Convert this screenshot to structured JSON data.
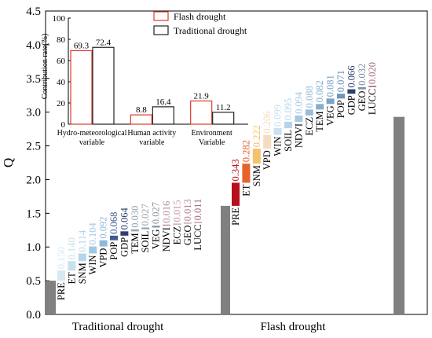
{
  "chart_data": [
    {
      "type": "waterfall",
      "ylabel": "Q",
      "ylim": [
        0,
        4.5
      ],
      "yticks": [
        "0.0",
        "0.5",
        "1.0",
        "1.5",
        "2.0",
        "2.5",
        "3.0",
        "3.5",
        "4.0",
        "4.5"
      ],
      "groups": [
        {
          "name": "Traditional drought",
          "total": 2.93,
          "base": 0.5,
          "factors": [
            {
              "label": "PRE",
              "value": 0.15,
              "text": "0.150",
              "color": "#d6e8f2"
            },
            {
              "label": "ET",
              "value": 0.14,
              "text": "0.140",
              "color": "#c9e0ee"
            },
            {
              "label": "SNM",
              "value": 0.114,
              "text": "0.114",
              "color": "#b7d5ea"
            },
            {
              "label": "WIN",
              "value": 0.104,
              "text": "0.104",
              "color": "#a3c7e3"
            },
            {
              "label": "VPD",
              "value": 0.092,
              "text": "0.092",
              "color": "#8fb8db"
            },
            {
              "label": "POP",
              "value": 0.068,
              "text": "0.068",
              "color": "#3e5a8f"
            },
            {
              "label": "GDP",
              "value": 0.064,
              "text": "0.064",
              "color": "#2e3f6e"
            },
            {
              "label": "TEM",
              "value": 0.03,
              "text": "0.030",
              "color": "#8fa6b3"
            },
            {
              "label": "SOIL",
              "value": 0.027,
              "text": "0.027",
              "color": "#9aa7b0"
            },
            {
              "label": "VEG",
              "value": 0.027,
              "text": "0.027",
              "color": "#8996a2"
            },
            {
              "label": "NDVI",
              "value": 0.016,
              "text": "0.016",
              "color": "#b88e98"
            },
            {
              "label": "ECZ",
              "value": 0.015,
              "text": "0.015",
              "color": "#c49aa2"
            },
            {
              "label": "GEO",
              "value": 0.013,
              "text": "0.013",
              "color": "#b38790"
            },
            {
              "label": "LUCC",
              "value": 0.011,
              "text": "0.011",
              "color": "#a76f7c"
            }
          ]
        },
        {
          "name": "Flash drought",
          "total": 2.93,
          "base": 1.61,
          "factors": [
            {
              "label": "PRE",
              "value": 0.343,
              "text": "0.343",
              "color": "#b8101c"
            },
            {
              "label": "ET",
              "value": 0.282,
              "text": "0.282",
              "color": "#e8622c"
            },
            {
              "label": "SNM",
              "value": 0.222,
              "text": "0.222",
              "color": "#f5c26b"
            },
            {
              "label": "VPD",
              "value": 0.206,
              "text": "0.206",
              "color": "#f3dcc0"
            },
            {
              "label": "WIN",
              "value": 0.099,
              "text": "0.099",
              "color": "#c9e0ee"
            },
            {
              "label": "SOIL",
              "value": 0.095,
              "text": "0.095",
              "color": "#b5d4e8"
            },
            {
              "label": "NDVI",
              "value": 0.094,
              "text": "0.094",
              "color": "#a6c9e2"
            },
            {
              "label": "ECZ",
              "value": 0.088,
              "text": "0.088",
              "color": "#97bdd9"
            },
            {
              "label": "TEM",
              "value": 0.082,
              "text": "0.082",
              "color": "#86afcf"
            },
            {
              "label": "VEG",
              "value": 0.081,
              "text": "0.081",
              "color": "#7aa3c6"
            },
            {
              "label": "POP",
              "value": 0.071,
              "text": "0.071",
              "color": "#6d95bb"
            },
            {
              "label": "GDP",
              "value": 0.066,
              "text": "0.066",
              "color": "#2e3f6e"
            },
            {
              "label": "GEO",
              "value": 0.032,
              "text": "0.032",
              "color": "#7b8fa3"
            },
            {
              "label": "LUCC",
              "value": 0.02,
              "text": "0.020",
              "color": "#a76f7c"
            }
          ]
        }
      ]
    },
    {
      "type": "bar",
      "ylabel": "Contribution rate(%)",
      "ylim": [
        0,
        100
      ],
      "yticks": [
        "0",
        "20",
        "40",
        "60",
        "80",
        "100"
      ],
      "categories": [
        "Hydro-meteorological\nvariable",
        "Human activity\nvariable",
        "Environment\nVariable"
      ],
      "series": [
        {
          "name": "Flash drought",
          "values": [
            69.3,
            8.8,
            21.9
          ],
          "labels": [
            "69.3",
            "8.8",
            "21.9"
          ],
          "color": "#e0392b"
        },
        {
          "name": "Traditional drought",
          "values": [
            72.4,
            16.4,
            11.2
          ],
          "labels": [
            "72.4",
            "16.4",
            "11.2"
          ],
          "color": "#222222"
        }
      ]
    }
  ]
}
